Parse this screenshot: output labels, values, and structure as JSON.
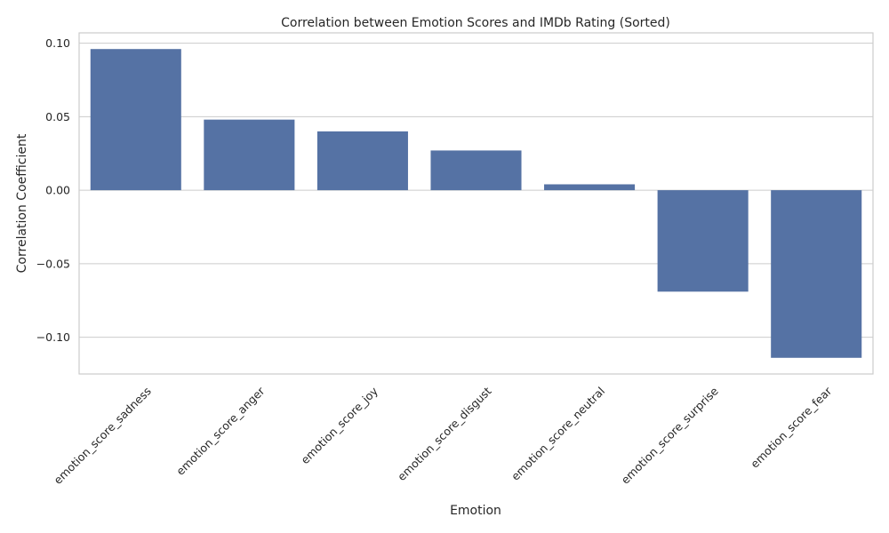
{
  "chart_data": {
    "type": "bar",
    "title": "Correlation between Emotion Scores and IMDb Rating (Sorted)",
    "xlabel": "Emotion",
    "ylabel": "Correlation Coefficient",
    "categories": [
      "emotion_score_sadness",
      "emotion_score_anger",
      "emotion_score_joy",
      "emotion_score_disgust",
      "emotion_score_neutral",
      "emotion_score_surprise",
      "emotion_score_fear"
    ],
    "values": [
      0.096,
      0.048,
      0.04,
      0.027,
      0.004,
      -0.069,
      -0.114
    ],
    "ylim": [
      -0.125,
      0.107
    ],
    "yticks": [
      0.1,
      0.05,
      0.0,
      -0.05,
      -0.1
    ],
    "ytick_labels": [
      "0.10",
      "0.05",
      "0.00",
      "−0.05",
      "−0.10"
    ],
    "bar_color": "#5572a4",
    "grid": true,
    "legend": "none"
  }
}
